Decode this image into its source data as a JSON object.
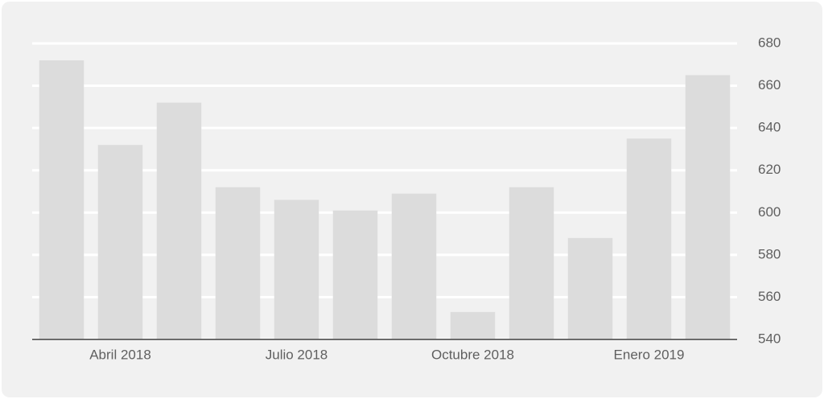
{
  "chart_data": {
    "type": "bar",
    "categories": [
      null,
      "Abril 2018",
      null,
      null,
      "Julio 2018",
      null,
      null,
      "Octubre 2018",
      null,
      null,
      "Enero 2019",
      null
    ],
    "values": [
      672,
      632,
      652,
      612,
      606,
      601,
      609,
      553,
      612,
      588,
      635,
      665
    ],
    "color": "#dcdcdc",
    "ylim": [
      540,
      680
    ],
    "yticks": [
      540,
      560,
      580,
      600,
      620,
      640,
      660,
      680
    ],
    "grid": true
  }
}
